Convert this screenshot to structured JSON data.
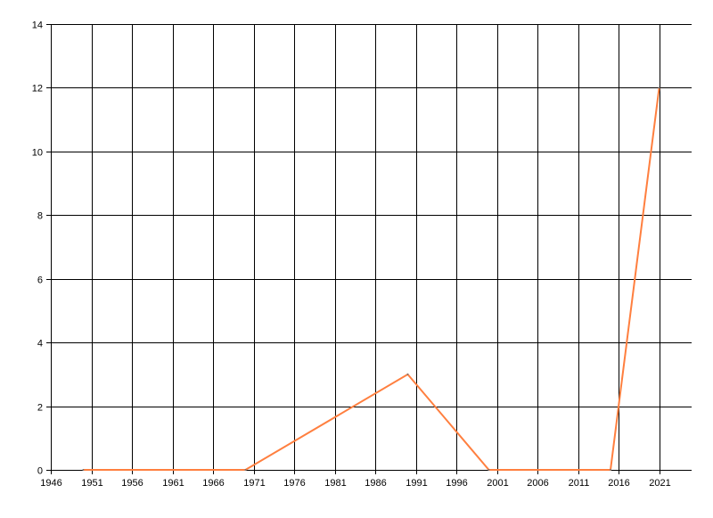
{
  "chart_data": {
    "type": "line",
    "title": "",
    "xlabel": "",
    "ylabel": "",
    "xlim": [
      1946,
      2025
    ],
    "ylim": [
      0,
      14
    ],
    "x_ticks": [
      1946,
      1951,
      1956,
      1961,
      1966,
      1971,
      1976,
      1981,
      1986,
      1991,
      1996,
      2001,
      2006,
      2011,
      2016,
      2021
    ],
    "y_ticks": [
      0,
      2,
      4,
      6,
      8,
      10,
      12,
      14
    ],
    "grid": true,
    "legend": "none",
    "series": [
      {
        "color": "#ff7f3f",
        "x": [
          1950,
          1970,
          1990,
          2000,
          2015,
          2021
        ],
        "y": [
          0,
          0,
          3,
          0,
          0,
          12
        ]
      }
    ]
  }
}
